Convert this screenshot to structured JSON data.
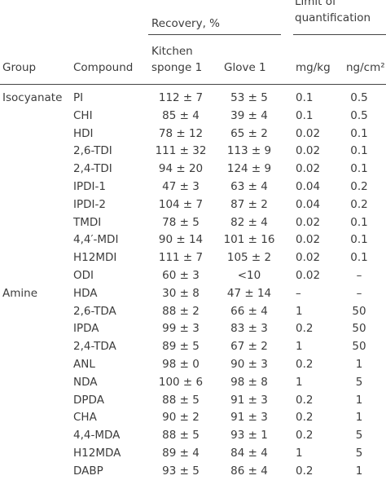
{
  "table": {
    "header": {
      "recovery": "Recovery, %",
      "limit": "Limit of quantification",
      "group": "Group",
      "compound": "Compound",
      "sponge": "Kitchen sponge 1",
      "glove": "Glove 1",
      "mgkg": "mg/kg",
      "ngcm2": "ng/cm²"
    },
    "groups": [
      {
        "name": "Isocyanate",
        "rows": [
          [
            "PI",
            "112 ± 7",
            "53 ± 5",
            "0.1",
            "0.5"
          ],
          [
            "CHI",
            "85 ± 4",
            "39 ± 4",
            "0.1",
            "0.5"
          ],
          [
            "HDI",
            "78 ± 12",
            "65 ± 2",
            "0.02",
            "0.1"
          ],
          [
            "2,6-TDI",
            "111 ± 32",
            "113 ± 9",
            "0.02",
            "0.1"
          ],
          [
            "2,4-TDI",
            "94 ± 20",
            "124 ± 9",
            "0.02",
            "0.1"
          ],
          [
            "IPDI-1",
            "47 ± 3",
            "63 ± 4",
            "0.04",
            "0.2"
          ],
          [
            "IPDI-2",
            "104 ± 7",
            "87 ± 2",
            "0.04",
            "0.2"
          ],
          [
            "TMDI",
            "78 ± 5",
            "82 ± 4",
            "0.02",
            "0.1"
          ],
          [
            "4,4′-MDI",
            "90 ± 14",
            "101 ± 16",
            "0.02",
            "0.1"
          ],
          [
            "H12MDI",
            "111 ± 7",
            "105 ± 2",
            "0.02",
            "0.1"
          ],
          [
            "ODI",
            "60 ± 3",
            "<10",
            "0.02",
            "–"
          ]
        ]
      },
      {
        "name": "Amine",
        "rows": [
          [
            "HDA",
            "30 ± 8",
            "47 ± 14",
            "–",
            "–"
          ],
          [
            "2,6-TDA",
            "88 ± 2",
            "66 ± 4",
            "1",
            "50"
          ],
          [
            "IPDA",
            "99 ± 3",
            "83 ± 3",
            "0.2",
            "50"
          ],
          [
            "2,4-TDA",
            "89 ± 5",
            "67 ± 2",
            "1",
            "50"
          ],
          [
            "ANL",
            "98 ± 0",
            "90 ± 3",
            "0.2",
            "1"
          ],
          [
            "NDA",
            "100 ± 6",
            "98 ± 8",
            "1",
            "5"
          ],
          [
            "DPDA",
            "88 ± 5",
            "91 ± 3",
            "0.2",
            "1"
          ],
          [
            "CHA",
            "90 ± 2",
            "91 ± 3",
            "0.2",
            "1"
          ],
          [
            "4,4-MDA",
            "88 ± 5",
            "93 ± 1",
            "0.2",
            "5"
          ],
          [
            "H12MDA",
            "89 ± 4",
            "84 ± 4",
            "1",
            "5"
          ],
          [
            "DABP",
            "93 ± 5",
            "86 ± 4",
            "0.2",
            "1"
          ]
        ]
      }
    ]
  }
}
